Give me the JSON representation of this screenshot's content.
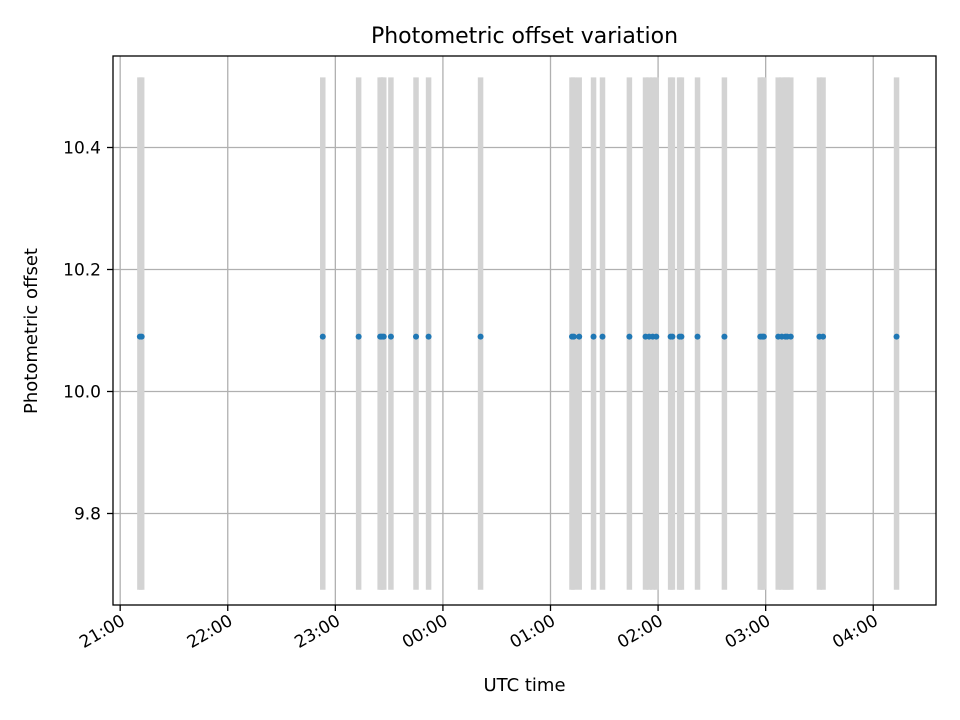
{
  "chart_data": {
    "type": "scatter",
    "title": "Photometric offset variation",
    "xlabel": "UTC time",
    "ylabel": "Photometric offset",
    "xlim": [
      "2020-01-01T20:56",
      "2020-01-02T04:35"
    ],
    "ylim": [
      9.65,
      10.55
    ],
    "x_ticks": [
      {
        "t": "2020-01-01T21:00",
        "label": "21:00"
      },
      {
        "t": "2020-01-01T22:00",
        "label": "22:00"
      },
      {
        "t": "2020-01-01T23:00",
        "label": "23:00"
      },
      {
        "t": "2020-01-02T00:00",
        "label": "00:00"
      },
      {
        "t": "2020-01-02T01:00",
        "label": "01:00"
      },
      {
        "t": "2020-01-02T02:00",
        "label": "02:00"
      },
      {
        "t": "2020-01-02T03:00",
        "label": "03:00"
      },
      {
        "t": "2020-01-02T04:00",
        "label": "04:00"
      }
    ],
    "y_ticks": [
      9.8,
      10.0,
      10.2,
      10.4
    ],
    "grid": true,
    "point_color": "#1f77b4",
    "band_color": "#d3d3d3",
    "bands": {
      "y_range": [
        9.675,
        10.515
      ],
      "times": [
        "2020-01-01T21:11",
        "2020-01-01T21:12",
        "2020-01-01T22:53",
        "2020-01-01T23:13",
        "2020-01-01T23:25",
        "2020-01-01T23:26",
        "2020-01-01T23:27",
        "2020-01-01T23:31",
        "2020-01-01T23:45",
        "2020-01-01T23:52",
        "2020-01-02T00:21",
        "2020-01-02T01:12",
        "2020-01-02T01:13",
        "2020-01-02T01:16",
        "2020-01-02T01:24",
        "2020-01-02T01:29",
        "2020-01-02T01:44",
        "2020-01-02T01:53",
        "2020-01-02T01:55",
        "2020-01-02T01:57",
        "2020-01-02T01:59",
        "2020-01-02T02:07",
        "2020-01-02T02:08",
        "2020-01-02T02:12",
        "2020-01-02T02:13",
        "2020-01-02T02:22",
        "2020-01-02T02:37",
        "2020-01-02T02:57",
        "2020-01-02T02:58",
        "2020-01-02T02:59",
        "2020-01-02T03:07",
        "2020-01-02T03:09",
        "2020-01-02T03:11",
        "2020-01-02T03:12",
        "2020-01-02T03:14",
        "2020-01-02T03:30",
        "2020-01-02T03:32",
        "2020-01-02T04:13"
      ]
    },
    "series": [
      {
        "points": [
          {
            "x": "2020-01-01T21:11",
            "y": 10.09
          },
          {
            "x": "2020-01-01T21:12",
            "y": 10.09
          },
          {
            "x": "2020-01-01T22:53",
            "y": 10.09
          },
          {
            "x": "2020-01-01T23:13",
            "y": 10.09
          },
          {
            "x": "2020-01-01T23:25",
            "y": 10.09
          },
          {
            "x": "2020-01-01T23:26",
            "y": 10.09
          },
          {
            "x": "2020-01-01T23:27",
            "y": 10.09
          },
          {
            "x": "2020-01-01T23:31",
            "y": 10.09
          },
          {
            "x": "2020-01-01T23:45",
            "y": 10.09
          },
          {
            "x": "2020-01-01T23:52",
            "y": 10.09
          },
          {
            "x": "2020-01-02T00:21",
            "y": 10.09
          },
          {
            "x": "2020-01-02T01:12",
            "y": 10.09
          },
          {
            "x": "2020-01-02T01:13",
            "y": 10.09
          },
          {
            "x": "2020-01-02T01:16",
            "y": 10.09
          },
          {
            "x": "2020-01-02T01:24",
            "y": 10.09
          },
          {
            "x": "2020-01-02T01:29",
            "y": 10.09
          },
          {
            "x": "2020-01-02T01:44",
            "y": 10.09
          },
          {
            "x": "2020-01-02T01:53",
            "y": 10.09
          },
          {
            "x": "2020-01-02T01:55",
            "y": 10.09
          },
          {
            "x": "2020-01-02T01:57",
            "y": 10.09
          },
          {
            "x": "2020-01-02T01:59",
            "y": 10.09
          },
          {
            "x": "2020-01-02T02:07",
            "y": 10.09
          },
          {
            "x": "2020-01-02T02:08",
            "y": 10.09
          },
          {
            "x": "2020-01-02T02:12",
            "y": 10.09
          },
          {
            "x": "2020-01-02T02:13",
            "y": 10.09
          },
          {
            "x": "2020-01-02T02:22",
            "y": 10.09
          },
          {
            "x": "2020-01-02T02:37",
            "y": 10.09
          },
          {
            "x": "2020-01-02T02:57",
            "y": 10.09
          },
          {
            "x": "2020-01-02T02:58",
            "y": 10.09
          },
          {
            "x": "2020-01-02T02:59",
            "y": 10.09
          },
          {
            "x": "2020-01-02T03:07",
            "y": 10.09
          },
          {
            "x": "2020-01-02T03:09",
            "y": 10.09
          },
          {
            "x": "2020-01-02T03:11",
            "y": 10.09
          },
          {
            "x": "2020-01-02T03:12",
            "y": 10.09
          },
          {
            "x": "2020-01-02T03:14",
            "y": 10.09
          },
          {
            "x": "2020-01-02T03:30",
            "y": 10.09
          },
          {
            "x": "2020-01-02T03:32",
            "y": 10.09
          },
          {
            "x": "2020-01-02T04:13",
            "y": 10.09
          }
        ]
      }
    ]
  }
}
